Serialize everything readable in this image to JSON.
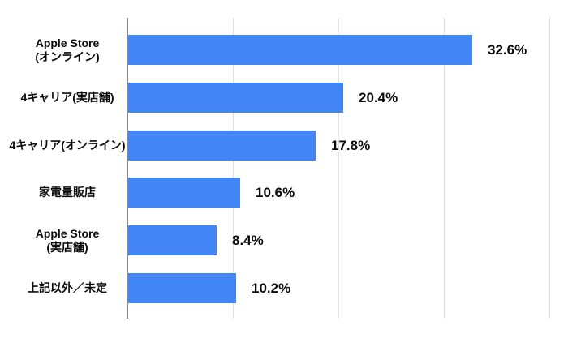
{
  "chart_data": {
    "type": "bar",
    "orientation": "horizontal",
    "title": "",
    "xlabel": "",
    "ylabel": "",
    "xlim": [
      0,
      40
    ],
    "gridlines_percent": [
      0,
      10,
      20,
      30,
      40
    ],
    "grid": true,
    "legend": "none",
    "categories": [
      [
        "Apple Store",
        "(オンライン)"
      ],
      [
        "4キャリア(実店舗)"
      ],
      [
        "4キャリア(オンライン)"
      ],
      [
        "家電量販店"
      ],
      [
        "Apple Store",
        "(実店舗)"
      ],
      [
        "上記以外／未定"
      ]
    ],
    "values": [
      32.6,
      20.4,
      17.8,
      10.6,
      8.4,
      10.2
    ],
    "value_labels": [
      "32.6%",
      "20.4%",
      "17.8%",
      "10.6%",
      "8.4%",
      "10.2%"
    ],
    "colors": {
      "bar": "#4285F4",
      "axis_line": "#888888",
      "gridline": "#e0e0e0",
      "text": "#0a0a0a",
      "background": "#ffffff"
    }
  }
}
